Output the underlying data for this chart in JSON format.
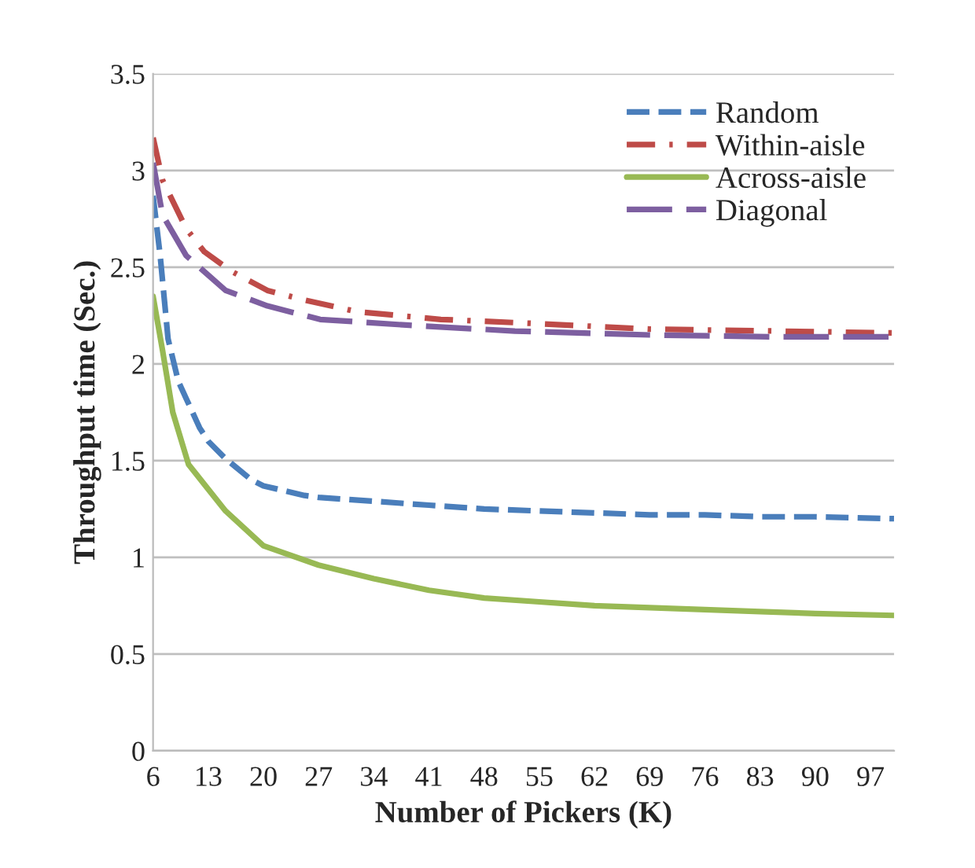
{
  "chart_data": {
    "type": "line",
    "xlabel": "Number of Pickers (K)",
    "ylabel": "Throughput time (Sec.)",
    "xlim": [
      6,
      100
    ],
    "xticks": [
      6,
      13,
      20,
      27,
      34,
      41,
      48,
      55,
      62,
      69,
      76,
      83,
      90,
      97
    ],
    "ylim": [
      0,
      3.5
    ],
    "yticks": [
      0,
      0.5,
      1,
      1.5,
      2,
      2.5,
      3,
      3.5
    ],
    "grid": "y",
    "legend": "top right",
    "series": [
      {
        "name": "Random",
        "color": "#4a7ebb",
        "line_style": "dashed",
        "x": [
          6,
          6.9,
          7.9,
          9.2,
          11.9,
          13,
          15.2,
          18.5,
          20,
          25.2,
          27,
          34,
          41,
          48,
          55,
          62,
          69,
          76,
          83,
          90,
          100
        ],
        "values": [
          2.87,
          2.56,
          2.13,
          1.91,
          1.67,
          1.6,
          1.51,
          1.4,
          1.37,
          1.32,
          1.31,
          1.29,
          1.27,
          1.25,
          1.24,
          1.23,
          1.22,
          1.22,
          1.21,
          1.21,
          1.2
        ]
      },
      {
        "name": "Within-aisle",
        "color": "#be4b48",
        "line_style": "dashdot",
        "x": [
          6,
          7.2,
          10.2,
          12.5,
          15.9,
          20.5,
          25.2,
          31.9,
          42.5,
          53.9,
          69,
          85,
          100
        ],
        "values": [
          3.17,
          2.95,
          2.7,
          2.58,
          2.48,
          2.38,
          2.33,
          2.27,
          2.23,
          2.21,
          2.18,
          2.17,
          2.16
        ]
      },
      {
        "name": "Across-aisle",
        "color": "#98b954",
        "line_style": "solid",
        "x": [
          6,
          7.2,
          8.5,
          10.5,
          15.2,
          20,
          27,
          34,
          41,
          48,
          55,
          62,
          69,
          76,
          83,
          90,
          100
        ],
        "values": [
          2.35,
          2.07,
          1.75,
          1.48,
          1.24,
          1.06,
          0.96,
          0.89,
          0.83,
          0.79,
          0.77,
          0.75,
          0.74,
          0.73,
          0.72,
          0.71,
          0.7
        ]
      },
      {
        "name": "Diagonal",
        "color": "#7d5fa0",
        "line_style": "longdash",
        "x": [
          6,
          7.2,
          10.2,
          15.2,
          20.5,
          27.2,
          38.5,
          51.9,
          69,
          85,
          100
        ],
        "values": [
          3.04,
          2.77,
          2.56,
          2.38,
          2.3,
          2.23,
          2.2,
          2.17,
          2.15,
          2.14,
          2.14
        ]
      }
    ]
  }
}
